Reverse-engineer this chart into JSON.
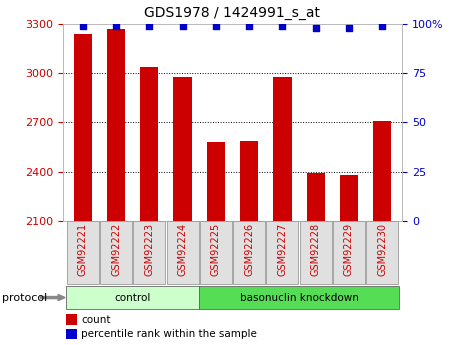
{
  "title": "GDS1978 / 1424991_s_at",
  "samples": [
    "GSM92221",
    "GSM92222",
    "GSM92223",
    "GSM92224",
    "GSM92225",
    "GSM92226",
    "GSM92227",
    "GSM92228",
    "GSM92229",
    "GSM92230"
  ],
  "counts": [
    3240,
    3270,
    3040,
    2980,
    2580,
    2590,
    2980,
    2390,
    2380,
    2710
  ],
  "percentiles": [
    99,
    99,
    99,
    99,
    99,
    99,
    99,
    98,
    98,
    99
  ],
  "ylim_left": [
    2100,
    3300
  ],
  "ylim_right": [
    0,
    100
  ],
  "yticks_left": [
    2100,
    2400,
    2700,
    3000,
    3300
  ],
  "yticks_right": [
    0,
    25,
    50,
    75,
    100
  ],
  "yticklabels_right": [
    "0",
    "25",
    "50",
    "75",
    "100%"
  ],
  "bar_color": "#cc0000",
  "dot_color": "#0000cc",
  "bar_width": 0.55,
  "protocol_groups": [
    {
      "label": "control",
      "start": 0,
      "end": 3,
      "color": "#ccffcc"
    },
    {
      "label": "basonuclin knockdown",
      "start": 4,
      "end": 9,
      "color": "#55dd55"
    }
  ],
  "legend_items": [
    {
      "label": "count",
      "color": "#cc0000"
    },
    {
      "label": "percentile rank within the sample",
      "color": "#0000cc"
    }
  ],
  "protocol_label": "protocol",
  "tick_label_color_left": "#cc0000",
  "tick_label_color_right": "#0000cc",
  "title_color": "#000000",
  "sample_box_color": "#e0e0e0",
  "sample_box_edge": "#999999"
}
